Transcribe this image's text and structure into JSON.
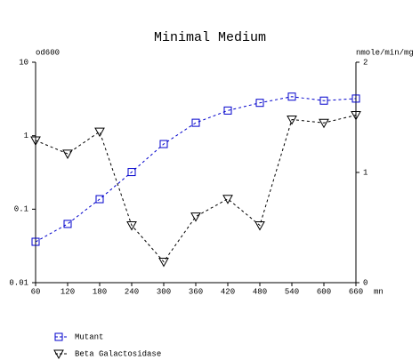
{
  "chart_data": {
    "type": "line",
    "title": "Minimal Medium",
    "ylabel": "od600",
    "y2label": "nmole/min/mg",
    "xlabel": "mn",
    "x": [
      60,
      120,
      180,
      240,
      300,
      360,
      420,
      480,
      540,
      600,
      660
    ],
    "xlim": [
      60,
      660
    ],
    "xticks": [
      60,
      120,
      180,
      240,
      300,
      360,
      420,
      480,
      540,
      600,
      660
    ],
    "ylim": [
      0.01,
      10
    ],
    "yticks": [
      10,
      1,
      0.1,
      0.01
    ],
    "ylog": true,
    "y2lim": [
      0,
      2
    ],
    "y2ticks": [
      2,
      1,
      0
    ],
    "series": [
      {
        "name": "Mutant",
        "color": "#0000cc",
        "marker": "square",
        "values": [
          0.036,
          0.063,
          0.137,
          0.32,
          0.77,
          1.5,
          2.2,
          2.8,
          3.4,
          3.0,
          3.2
        ]
      },
      {
        "name": "Beta Galactosidase",
        "color": "#000000",
        "marker": "triangle-down",
        "axis": "y2",
        "values": [
          1.29,
          1.17,
          1.37,
          0.52,
          0.19,
          0.6,
          0.76,
          0.52,
          1.48,
          1.45,
          1.52
        ]
      }
    ]
  }
}
